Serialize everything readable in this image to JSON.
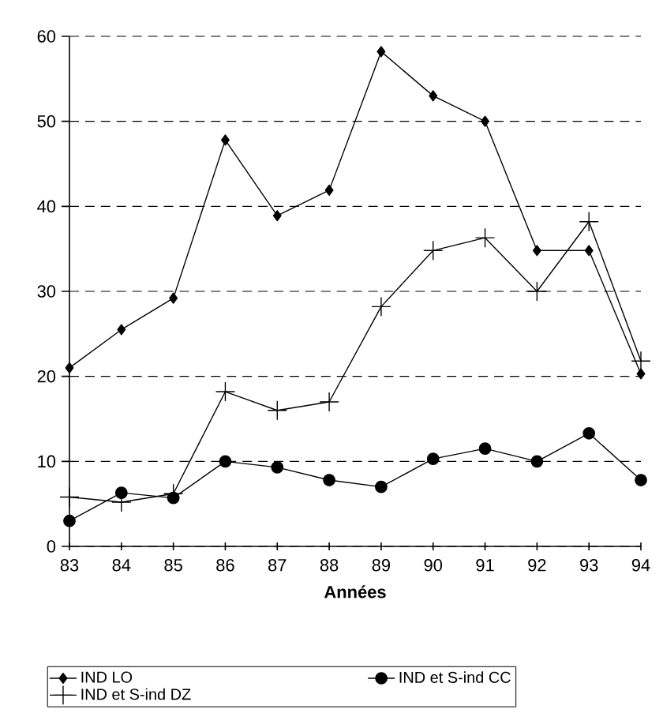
{
  "chart_data": {
    "type": "line",
    "xlabel": "Années",
    "categories": [
      "83",
      "84",
      "85",
      "86",
      "87",
      "88",
      "89",
      "90",
      "91",
      "92",
      "93",
      "94"
    ],
    "series": [
      {
        "name": "IND LO",
        "color": "#000000",
        "marker": "diamond",
        "values": [
          21,
          25.5,
          29.2,
          47.8,
          38.9,
          41.9,
          58.2,
          53,
          50,
          34.8,
          34.8,
          20.3
        ]
      },
      {
        "name": "IND et S-ind CC",
        "color": "#000000",
        "marker": "circle",
        "values": [
          3,
          6.3,
          5.7,
          10,
          9.3,
          7.8,
          7,
          10.3,
          11.5,
          10,
          13.3,
          7.8
        ]
      },
      {
        "name": "IND et S-ind DZ",
        "color": "#000000",
        "marker": "cross",
        "values": [
          5.8,
          5.2,
          6.2,
          18.2,
          16,
          17,
          28.2,
          34.8,
          36.3,
          30,
          38.2,
          21.8
        ]
      }
    ],
    "ylim": [
      0,
      60
    ],
    "yticks": [
      0,
      10,
      20,
      30,
      40,
      50,
      60
    ],
    "grid": "y",
    "legend": "bottom",
    "line_style": "solid"
  }
}
